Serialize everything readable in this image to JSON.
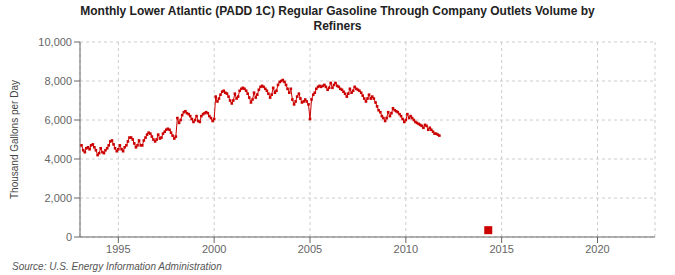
{
  "chart_data": {
    "type": "line",
    "title": "Monthly Lower Atlantic (PADD 1C) Regular Gasoline Through Company Outlets Volume by\nRefiners",
    "ylabel": "Thousand Gallons per Day",
    "annotations": [
      "Source: U.S. Energy Information Administration"
    ],
    "xlim": [
      1993.0,
      2023.0
    ],
    "xticks": [
      1995,
      2000,
      2005,
      2010,
      2015,
      2020
    ],
    "ylim": [
      0,
      10000
    ],
    "yticks": [
      0,
      {
        "value": 2000,
        "label": "2,000"
      },
      {
        "value": 4000,
        "label": "4,000"
      },
      {
        "value": 6000,
        "label": "6,000"
      },
      {
        "value": 8000,
        "label": "8,000"
      },
      {
        "value": 10000,
        "label": "10,000"
      }
    ],
    "grid": true,
    "series": [
      {
        "type": "line",
        "color": "#cc0000",
        "marker": "square",
        "x": [
          1993.08,
          1993.17,
          1993.25,
          1993.33,
          1993.42,
          1993.5,
          1993.58,
          1993.67,
          1993.75,
          1993.83,
          1993.92,
          1994.0,
          1994.08,
          1994.17,
          1994.25,
          1994.33,
          1994.42,
          1994.5,
          1994.58,
          1994.67,
          1994.75,
          1994.83,
          1994.92,
          1995.0,
          1995.08,
          1995.17,
          1995.25,
          1995.33,
          1995.42,
          1995.5,
          1995.58,
          1995.67,
          1995.75,
          1995.83,
          1995.92,
          1996.0,
          1996.08,
          1996.17,
          1996.25,
          1996.33,
          1996.42,
          1996.5,
          1996.58,
          1996.67,
          1996.75,
          1996.83,
          1996.92,
          1997.0,
          1997.08,
          1997.17,
          1997.25,
          1997.33,
          1997.42,
          1997.5,
          1997.58,
          1997.67,
          1997.75,
          1997.83,
          1997.92,
          1998.0,
          1998.08,
          1998.17,
          1998.25,
          1998.33,
          1998.42,
          1998.5,
          1998.58,
          1998.67,
          1998.75,
          1998.83,
          1998.92,
          1999.0,
          1999.08,
          1999.17,
          1999.25,
          1999.33,
          1999.42,
          1999.5,
          1999.58,
          1999.67,
          1999.75,
          1999.83,
          1999.92,
          2000.0,
          2000.08,
          2000.17,
          2000.25,
          2000.33,
          2000.42,
          2000.5,
          2000.58,
          2000.67,
          2000.75,
          2000.83,
          2000.92,
          2001.0,
          2001.08,
          2001.17,
          2001.25,
          2001.33,
          2001.42,
          2001.5,
          2001.58,
          2001.67,
          2001.75,
          2001.83,
          2001.92,
          2002.0,
          2002.08,
          2002.17,
          2002.25,
          2002.33,
          2002.42,
          2002.5,
          2002.58,
          2002.67,
          2002.75,
          2002.83,
          2002.92,
          2003.0,
          2003.08,
          2003.17,
          2003.25,
          2003.33,
          2003.42,
          2003.5,
          2003.58,
          2003.67,
          2003.75,
          2003.83,
          2003.92,
          2004.0,
          2004.08,
          2004.17,
          2004.25,
          2004.33,
          2004.42,
          2004.5,
          2004.58,
          2004.67,
          2004.75,
          2004.83,
          2004.92,
          2005.0,
          2005.08,
          2005.17,
          2005.25,
          2005.33,
          2005.42,
          2005.5,
          2005.58,
          2005.67,
          2005.75,
          2005.83,
          2005.92,
          2006.0,
          2006.08,
          2006.17,
          2006.25,
          2006.33,
          2006.42,
          2006.5,
          2006.58,
          2006.67,
          2006.75,
          2006.83,
          2006.92,
          2007.0,
          2007.08,
          2007.17,
          2007.25,
          2007.33,
          2007.42,
          2007.5,
          2007.58,
          2007.67,
          2007.75,
          2007.83,
          2007.92,
          2008.0,
          2008.08,
          2008.17,
          2008.25,
          2008.33,
          2008.42,
          2008.5,
          2008.58,
          2008.67,
          2008.75,
          2008.83,
          2008.92,
          2009.0,
          2009.08,
          2009.17,
          2009.25,
          2009.33,
          2009.42,
          2009.5,
          2009.58,
          2009.67,
          2009.75,
          2009.83,
          2009.92,
          2010.0,
          2010.08,
          2010.17,
          2010.25,
          2010.33,
          2010.42,
          2010.5,
          2010.58,
          2010.67,
          2010.75,
          2010.83,
          2010.92,
          2011.0,
          2011.08,
          2011.17,
          2011.25,
          2011.33,
          2011.42,
          2011.5,
          2011.58,
          2011.67,
          2011.75
        ],
        "values": [
          4700,
          4450,
          4350,
          4550,
          4600,
          4500,
          4700,
          4750,
          4600,
          4450,
          4200,
          4300,
          4550,
          4350,
          4300,
          4450,
          4550,
          4700,
          4900,
          4950,
          4750,
          4550,
          4400,
          4500,
          4700,
          4500,
          4400,
          4600,
          4700,
          4900,
          5100,
          5100,
          5000,
          4800,
          4600,
          4700,
          4950,
          4700,
          4700,
          4950,
          5100,
          5250,
          5350,
          5300,
          5150,
          5000,
          4900,
          5000,
          5250,
          5050,
          5100,
          5300,
          5400,
          5500,
          5550,
          5500,
          5350,
          5200,
          5050,
          5150,
          6100,
          5850,
          6000,
          6250,
          6400,
          6450,
          6350,
          6300,
          6200,
          6050,
          5900,
          6000,
          6200,
          5950,
          5900,
          6200,
          6300,
          6350,
          6400,
          6350,
          6200,
          6100,
          5950,
          6050,
          7200,
          6950,
          7100,
          7300,
          7450,
          7500,
          7400,
          7350,
          7200,
          7000,
          6850,
          7000,
          7350,
          7100,
          7200,
          7500,
          7600,
          7650,
          7600,
          7500,
          7350,
          7150,
          6900,
          7050,
          7400,
          7150,
          7300,
          7550,
          7700,
          7750,
          7700,
          7600,
          7500,
          7350,
          7150,
          7300,
          7650,
          7400,
          7500,
          7800,
          7950,
          8000,
          8050,
          7950,
          7800,
          7600,
          7400,
          7600,
          7050,
          6800,
          6950,
          7200,
          7350,
          7100,
          6900,
          6950,
          7050,
          6950,
          6800,
          6050,
          7050,
          7300,
          7400,
          7600,
          7700,
          7750,
          7700,
          7750,
          7800,
          7700,
          7550,
          7650,
          7900,
          7650,
          7800,
          7900,
          7750,
          7700,
          7600,
          7550,
          7450,
          7350,
          7200,
          7350,
          7600,
          7400,
          7500,
          7700,
          7600,
          7550,
          7500,
          7400,
          7250,
          7100,
          6950,
          7100,
          7300,
          7100,
          7200,
          7100,
          6900,
          6700,
          6500,
          6400,
          6200,
          6100,
          5950,
          6100,
          6400,
          6200,
          6350,
          6600,
          6500,
          6450,
          6400,
          6300,
          6200,
          6050,
          5900,
          6000,
          6300,
          6100,
          6200,
          6100,
          6000,
          5900,
          5850,
          5800,
          5750,
          5700,
          5600,
          5750,
          5700,
          5500,
          5600,
          5500,
          5400,
          5300,
          5300,
          5250,
          5200
        ]
      },
      {
        "type": "scatter",
        "color": "#cc0000",
        "marker": "square",
        "x": [
          2014.3
        ],
        "values": [
          350
        ]
      }
    ]
  }
}
